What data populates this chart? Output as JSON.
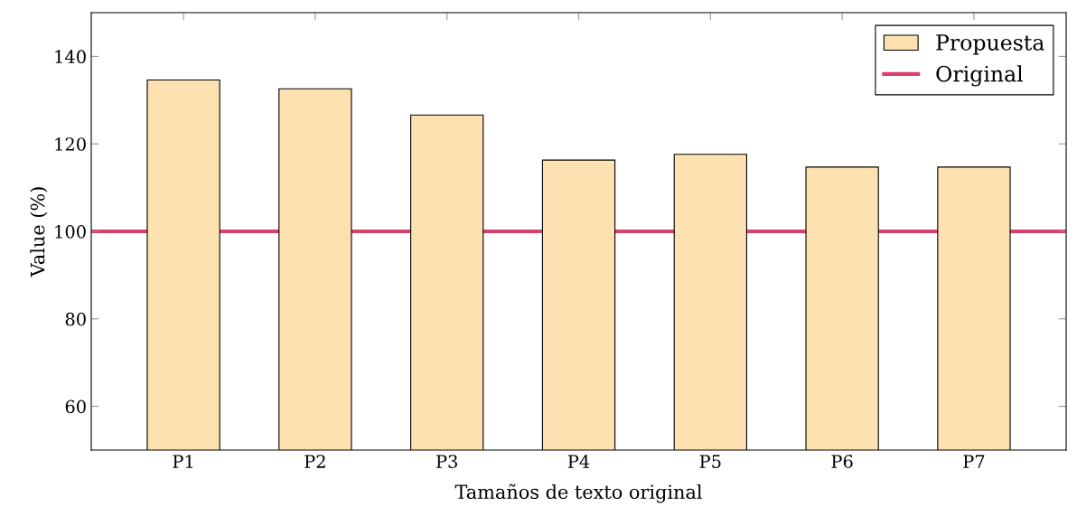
{
  "chart_data": {
    "type": "bar",
    "xlabel": "Tamaños de texto original",
    "ylabel": "Value (%)",
    "categories": [
      "P1",
      "P2",
      "P3",
      "P4",
      "P5",
      "P6",
      "P7"
    ],
    "series": [
      {
        "name": "Propuesta",
        "color": "#fde1b0",
        "values": [
          134.6,
          132.6,
          126.6,
          116.3,
          117.6,
          114.7,
          114.7
        ]
      }
    ],
    "ref_lines": [
      {
        "axis": "y",
        "value": 100,
        "label": "Original",
        "color": "#d9406c",
        "line_style": "solid"
      }
    ],
    "ylim": [
      50,
      150
    ],
    "yticks": [
      60,
      80,
      100,
      120,
      140
    ],
    "grid": false,
    "legend": "top right"
  }
}
